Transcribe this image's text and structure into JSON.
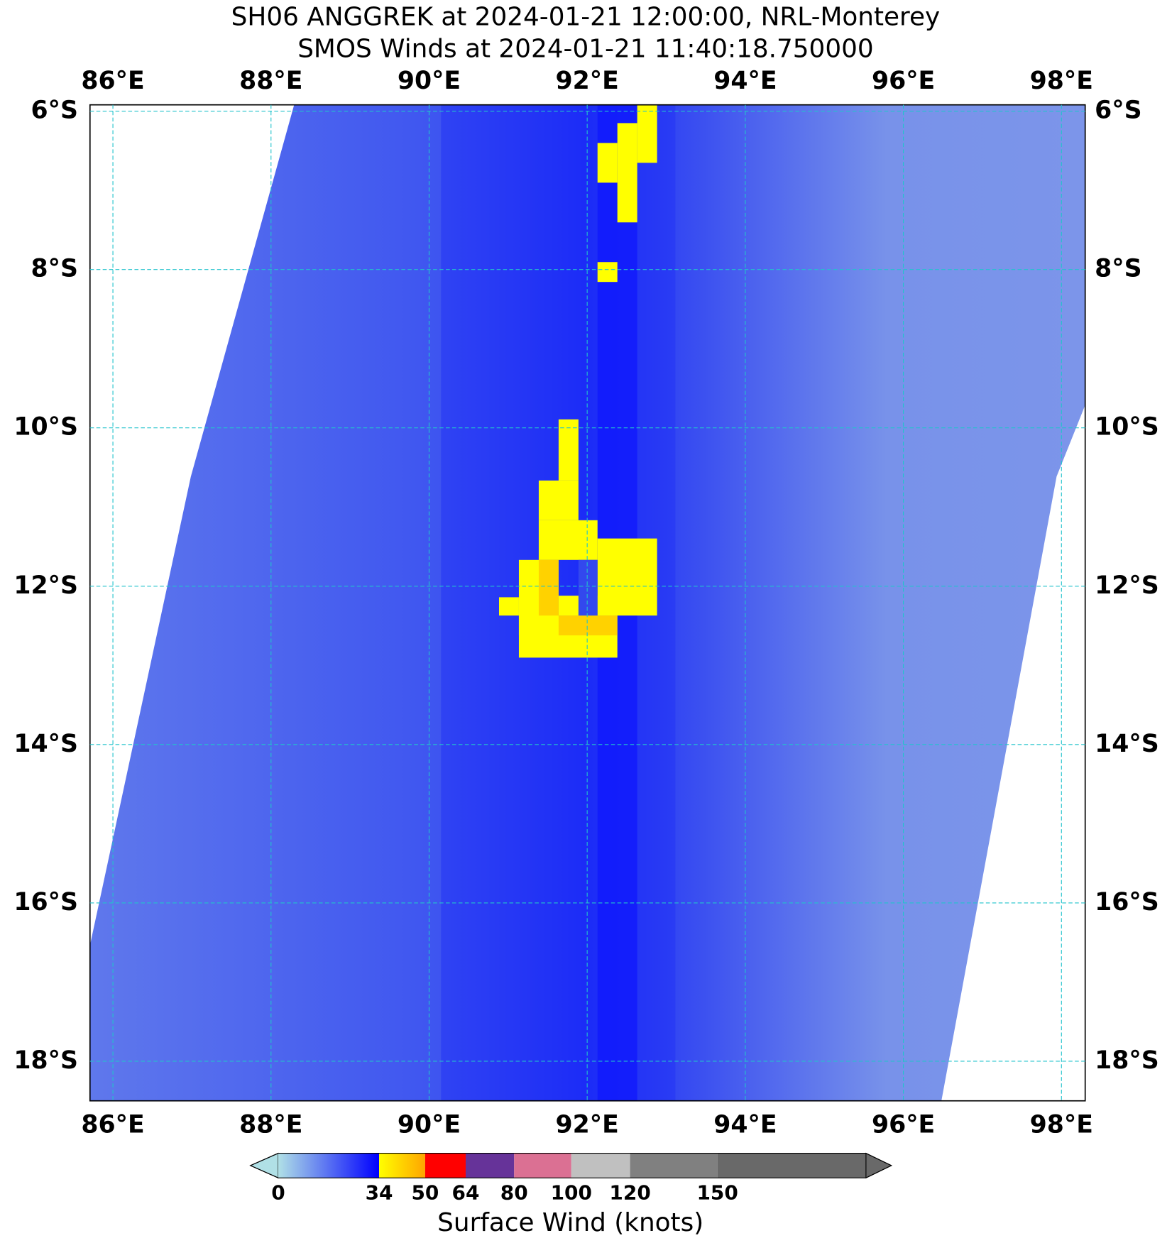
{
  "chart_data": {
    "type": "map",
    "title": "SH06 ANGGREK at 2024-01-21 12:00:00, NRL-Monterey",
    "subtitle": "SMOS Winds at 2024-01-21 11:40:18.750000",
    "xlim": [
      85.71,
      98.3
    ],
    "ylim": [
      -18.5,
      -5.92
    ],
    "xticks": [
      {
        "value": 86,
        "label": "86°E"
      },
      {
        "value": 88,
        "label": "88°E"
      },
      {
        "value": 90,
        "label": "90°E"
      },
      {
        "value": 92,
        "label": "92°E"
      },
      {
        "value": 94,
        "label": "94°E"
      },
      {
        "value": 96,
        "label": "96°E"
      },
      {
        "value": 98,
        "label": "98°E"
      }
    ],
    "yticks": [
      {
        "value": -6,
        "label": "6°S"
      },
      {
        "value": -8,
        "label": "8°S"
      },
      {
        "value": -10,
        "label": "10°S"
      },
      {
        "value": -12,
        "label": "12°S"
      },
      {
        "value": -14,
        "label": "14°S"
      },
      {
        "value": -16,
        "label": "16°S"
      },
      {
        "value": -18,
        "label": "18°S"
      }
    ],
    "grid": true,
    "grid_color": "#22c3cc",
    "colorbar": {
      "label": "Surface Wind (knots)",
      "ticks": [
        0,
        34,
        50,
        64,
        80,
        100,
        120,
        150
      ],
      "colors": [
        [
          "#b0e0e6",
          "#0000ff"
        ],
        [
          "#ffff00",
          "#ffa500"
        ],
        "#ff0000",
        "#663399",
        "#db7093",
        "#c0c0c0",
        "#808080"
      ],
      "under_color": "#b0e0e6",
      "over_color": "#696969"
    }
  }
}
